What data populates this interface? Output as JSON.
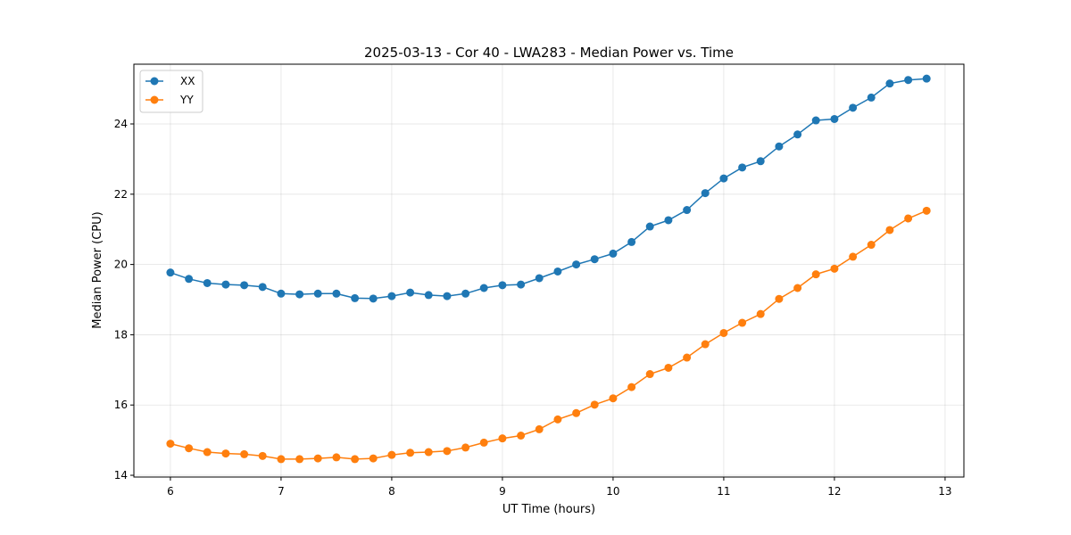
{
  "chart_data": {
    "type": "line",
    "title": "2025-03-13 - Cor 40 - LWA283 - Median Power vs. Time",
    "xlabel": "UT Time (hours)",
    "ylabel": "Median Power (CPU)",
    "xlim": [
      5.67,
      13.17
    ],
    "ylim": [
      13.95,
      25.7
    ],
    "xticks": [
      6,
      7,
      8,
      9,
      10,
      11,
      12,
      13
    ],
    "yticks": [
      14,
      16,
      18,
      20,
      22,
      24
    ],
    "grid": true,
    "legend_position": "top-left",
    "x": [
      6.0,
      6.167,
      6.333,
      6.5,
      6.667,
      6.833,
      7.0,
      7.167,
      7.333,
      7.5,
      7.667,
      7.833,
      8.0,
      8.167,
      8.333,
      8.5,
      8.667,
      8.833,
      9.0,
      9.167,
      9.333,
      9.5,
      9.667,
      9.833,
      10.0,
      10.167,
      10.333,
      10.5,
      10.667,
      10.833,
      11.0,
      11.167,
      11.333,
      11.5,
      11.667,
      11.833,
      12.0,
      12.167,
      12.333,
      12.5,
      12.667,
      12.833
    ],
    "series": [
      {
        "name": "XX",
        "color": "#1f77b4",
        "values": [
          19.77,
          19.59,
          19.47,
          19.43,
          19.41,
          19.36,
          19.17,
          19.15,
          19.17,
          19.17,
          19.04,
          19.03,
          19.1,
          19.2,
          19.13,
          19.1,
          19.17,
          19.33,
          19.41,
          19.43,
          19.61,
          19.8,
          20.0,
          20.15,
          20.31,
          20.64,
          21.08,
          21.26,
          21.55,
          22.03,
          22.45,
          22.76,
          22.94,
          23.36,
          23.7,
          24.1,
          24.14,
          24.46,
          24.75,
          25.15,
          25.25,
          25.29
        ]
      },
      {
        "name": "YY",
        "color": "#ff7f0e",
        "values": [
          14.9,
          14.77,
          14.66,
          14.62,
          14.6,
          14.55,
          14.46,
          14.46,
          14.48,
          14.51,
          14.46,
          14.48,
          14.58,
          14.64,
          14.66,
          14.69,
          14.79,
          14.93,
          15.05,
          15.13,
          15.31,
          15.59,
          15.77,
          16.01,
          16.19,
          16.51,
          16.88,
          17.06,
          17.35,
          17.73,
          18.05,
          18.34,
          18.59,
          19.02,
          19.33,
          19.72,
          19.88,
          20.22,
          20.56,
          20.98,
          21.31,
          21.53
        ]
      }
    ]
  }
}
